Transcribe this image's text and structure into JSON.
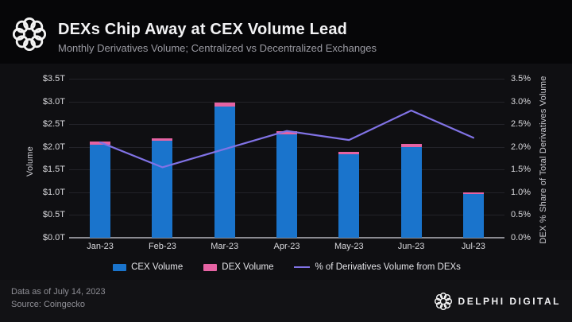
{
  "header": {
    "title": "DEXs Chip Away at CEX Volume Lead",
    "subtitle": "Monthly Derivatives Volume; Centralized vs Decentralized Exchanges"
  },
  "colors": {
    "cex_bar": "#1a74cc",
    "dex_bar": "#e563a3",
    "dex_share_line": "#8173e6",
    "gridline": "#232329",
    "axis_line": "#8b8b92",
    "chart_background": "#0f0f12",
    "header_background": "#060608",
    "footer_background": "#121215"
  },
  "chart_data": {
    "type": "bar",
    "subtype": "stacked-bar-with-line",
    "title": "DEXs Chip Away at CEX Volume Lead",
    "subtitle": "Monthly Derivatives Volume; Centralized vs Decentralized Exchanges",
    "categories": [
      "Jan-23",
      "Feb-23",
      "Mar-23",
      "Apr-23",
      "May-23",
      "Jun-23",
      "Jul-23"
    ],
    "stacked": true,
    "grid": "horizontal",
    "legend_position": "bottom-center",
    "series": [
      {
        "name": "CEX Volume",
        "type": "bar",
        "axis": "left",
        "unit": "trillion USD",
        "color_key": "cex_bar",
        "values": [
          2.05,
          2.13,
          2.89,
          2.28,
          1.84,
          1.99,
          0.97
        ]
      },
      {
        "name": "DEX Volume",
        "type": "bar",
        "axis": "left",
        "unit": "trillion USD",
        "color_key": "dex_bar",
        "values": [
          0.07,
          0.06,
          0.09,
          0.06,
          0.06,
          0.08,
          0.02
        ]
      },
      {
        "name": "% of Derivatives Volume from DEXs",
        "type": "line",
        "axis": "right",
        "unit": "percent",
        "color_key": "dex_share_line",
        "values": [
          2.1,
          1.55,
          1.95,
          2.35,
          2.15,
          2.8,
          2.2
        ]
      }
    ],
    "left_axis": {
      "label": "Volume",
      "min": 0,
      "max": 3.5,
      "ticks": [
        "$3.5T",
        "$3.0T",
        "$2.5T",
        "$2.0T",
        "$1.5T",
        "$1.0T",
        "$0.5T",
        "$0.0T"
      ]
    },
    "right_axis": {
      "label": "DEX % Share of Total Derivatives Volume",
      "min": 0,
      "max": 3.5,
      "ticks": [
        "3.5%",
        "3.0%",
        "2.5%",
        "2.0%",
        "1.5%",
        "1.0%",
        "0.5%",
        "0.0%"
      ]
    }
  },
  "footer": {
    "data_as_of": "Data as of July 14, 2023",
    "source": "Source: Coingecko",
    "brand": "DELPHI DIGITAL"
  }
}
